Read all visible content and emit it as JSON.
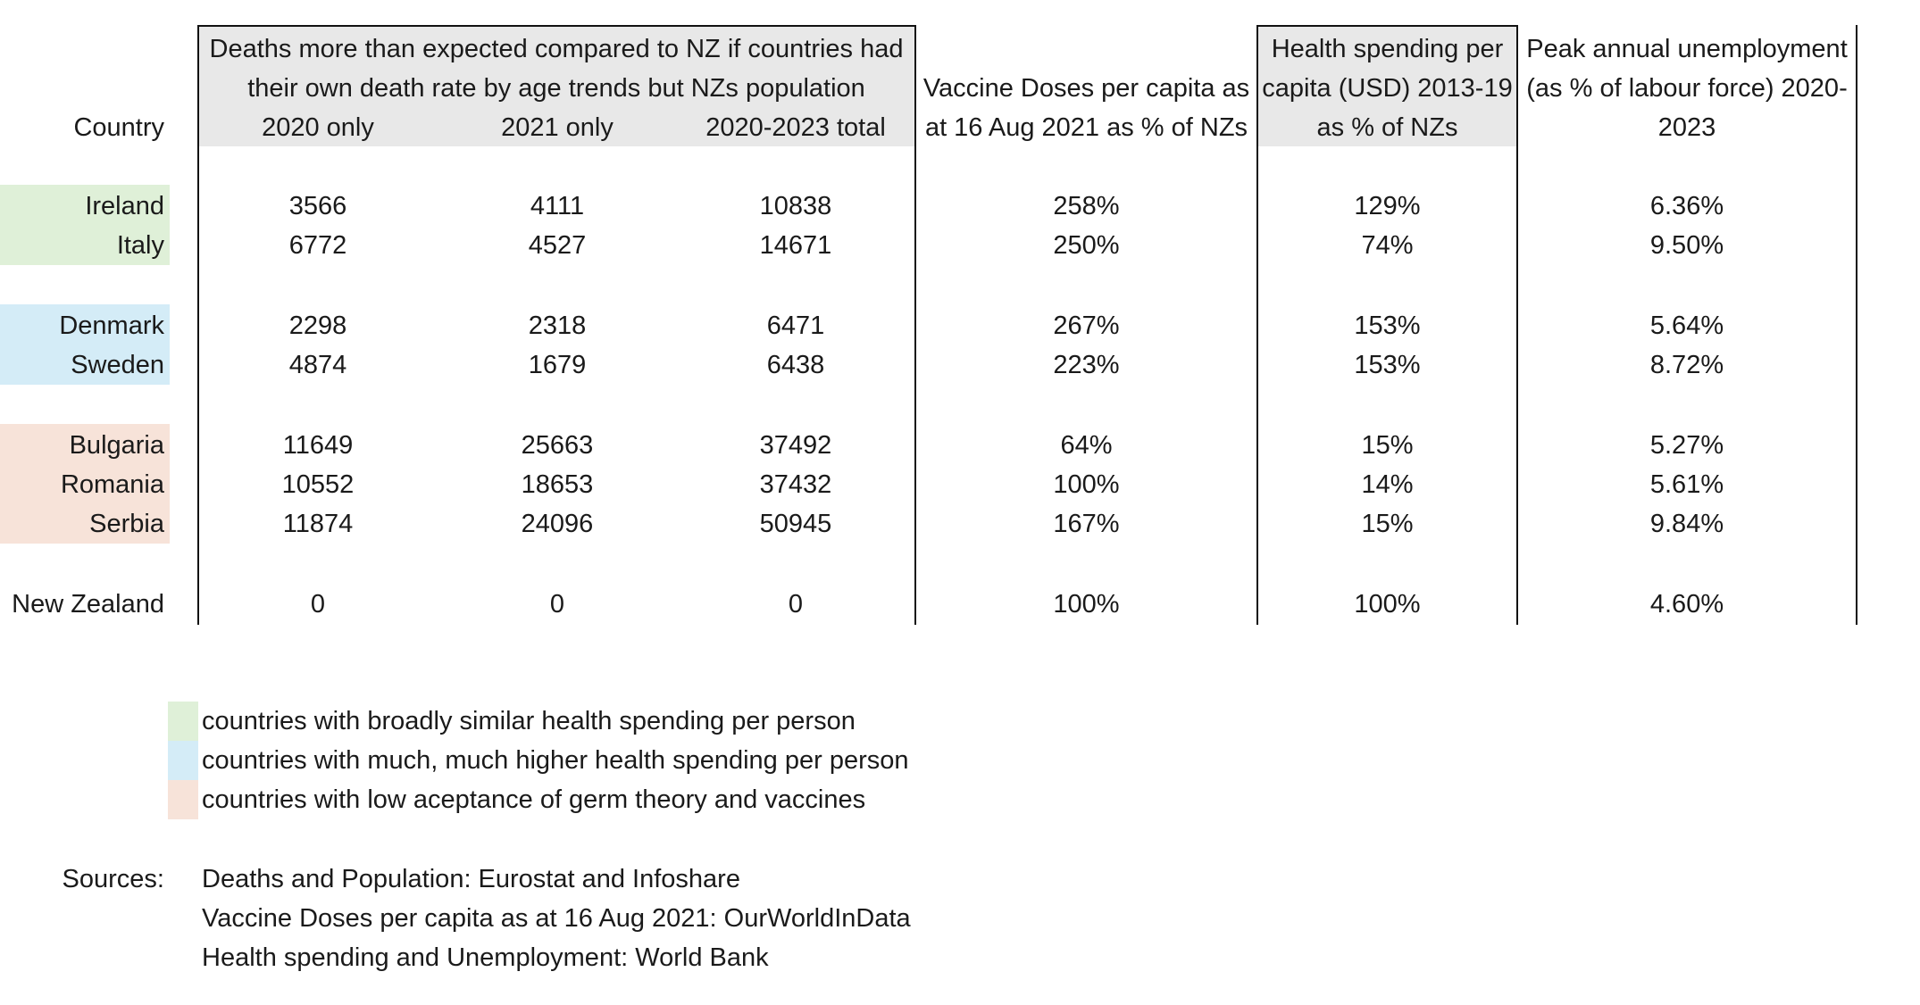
{
  "colors": {
    "header_bg": "#e8e8e8",
    "similar_spending": "#dff0d8",
    "higher_spending": "#d4ecf7",
    "low_acceptance": "#f7e3d9"
  },
  "header": {
    "country": "Country",
    "deaths_line1": "Deaths more than expected compared to NZ if countries had",
    "deaths_line2": "their own death rate by age trends but NZs population",
    "col_2020": "2020 only",
    "col_2021": "2021 only",
    "col_total": "2020-2023 total",
    "vaccine_line1": "Vaccine Doses per capita as",
    "vaccine_line2": "at 16 Aug 2021 as % of NZs",
    "health_line1": "Health spending per",
    "health_line2": "capita (USD) 2013-19",
    "health_line3": "as % of NZs",
    "unemp_line1": "Peak annual unemployment",
    "unemp_line2": "(as % of labour force) 2020-",
    "unemp_line3": "2023"
  },
  "rows": [
    {
      "country": "Ireland",
      "d2020": "3566",
      "d2021": "4111",
      "dtotal": "10838",
      "vaccine": "258%",
      "health": "129%",
      "unemp": "6.36%",
      "group": "similar_spending"
    },
    {
      "country": "Italy",
      "d2020": "6772",
      "d2021": "4527",
      "dtotal": "14671",
      "vaccine": "250%",
      "health": "74%",
      "unemp": "9.50%",
      "group": "similar_spending"
    },
    {
      "country": "Denmark",
      "d2020": "2298",
      "d2021": "2318",
      "dtotal": "6471",
      "vaccine": "267%",
      "health": "153%",
      "unemp": "5.64%",
      "group": "higher_spending"
    },
    {
      "country": "Sweden",
      "d2020": "4874",
      "d2021": "1679",
      "dtotal": "6438",
      "vaccine": "223%",
      "health": "153%",
      "unemp": "8.72%",
      "group": "higher_spending"
    },
    {
      "country": "Bulgaria",
      "d2020": "11649",
      "d2021": "25663",
      "dtotal": "37492",
      "vaccine": "64%",
      "health": "15%",
      "unemp": "5.27%",
      "group": "low_acceptance"
    },
    {
      "country": "Romania",
      "d2020": "10552",
      "d2021": "18653",
      "dtotal": "37432",
      "vaccine": "100%",
      "health": "14%",
      "unemp": "5.61%",
      "group": "low_acceptance"
    },
    {
      "country": "Serbia",
      "d2020": "11874",
      "d2021": "24096",
      "dtotal": "50945",
      "vaccine": "167%",
      "health": "15%",
      "unemp": "9.84%",
      "group": "low_acceptance"
    },
    {
      "country": "New Zealand",
      "d2020": "0",
      "d2021": "0",
      "dtotal": "0",
      "vaccine": "100%",
      "health": "100%",
      "unemp": "4.60%",
      "group": ""
    }
  ],
  "legend": [
    {
      "label": "countries with broadly similar health spending per person"
    },
    {
      "label": "countries with much, much higher health spending per person"
    },
    {
      "label": "countries with low aceptance of germ theory and vaccines"
    }
  ],
  "sources": {
    "label": "Sources:",
    "lines": [
      "Deaths and Population: Eurostat and Infoshare",
      "Vaccine Doses per capita as at 16 Aug 2021: OurWorldInData",
      "Health spending and Unemployment: World Bank"
    ]
  }
}
